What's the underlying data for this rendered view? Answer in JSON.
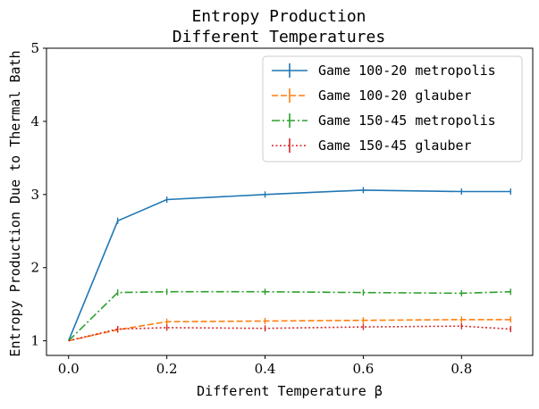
{
  "chart_data": {
    "type": "line",
    "title": "Entropy Production",
    "subtitle": "Different Temperatures",
    "xlabel": "Different Temperature β",
    "ylabel": "Entropy Production Due to Thermal Bath",
    "xlim": [
      -0.045,
      0.945
    ],
    "ylim": [
      0.8,
      5.0
    ],
    "xticks": [
      0.0,
      0.2,
      0.4,
      0.6,
      0.8
    ],
    "xtick_labels": [
      "0.0",
      "0.2",
      "0.4",
      "0.6",
      "0.8"
    ],
    "yticks": [
      1,
      2,
      3,
      4,
      5
    ],
    "ytick_labels": [
      "1",
      "2",
      "3",
      "4",
      "5"
    ],
    "grid": false,
    "legend_position": "top-right",
    "series": [
      {
        "name": "Game 100-20 metropolis",
        "color": "#1f77b4",
        "linestyle": "solid",
        "x": [
          0.0,
          0.1,
          0.2,
          0.4,
          0.6,
          0.8,
          0.9
        ],
        "y": [
          1.0,
          2.64,
          2.93,
          3.0,
          3.06,
          3.04,
          3.04
        ]
      },
      {
        "name": "Game 100-20 glauber",
        "color": "#ff7f0e",
        "linestyle": "dashed",
        "x": [
          0.0,
          0.1,
          0.2,
          0.4,
          0.6,
          0.8,
          0.9
        ],
        "y": [
          1.0,
          1.15,
          1.26,
          1.27,
          1.28,
          1.29,
          1.29
        ]
      },
      {
        "name": "Game 150-45 metropolis",
        "color": "#2ca02c",
        "linestyle": "dashdot",
        "x": [
          0.0,
          0.1,
          0.2,
          0.4,
          0.6,
          0.8,
          0.9
        ],
        "y": [
          1.0,
          1.66,
          1.67,
          1.67,
          1.66,
          1.65,
          1.67
        ]
      },
      {
        "name": "Game 150-45 glauber",
        "color": "#d62728",
        "linestyle": "dotted",
        "x": [
          0.0,
          0.1,
          0.2,
          0.4,
          0.6,
          0.8,
          0.9
        ],
        "y": [
          1.0,
          1.16,
          1.18,
          1.17,
          1.19,
          1.2,
          1.16
        ]
      }
    ]
  }
}
